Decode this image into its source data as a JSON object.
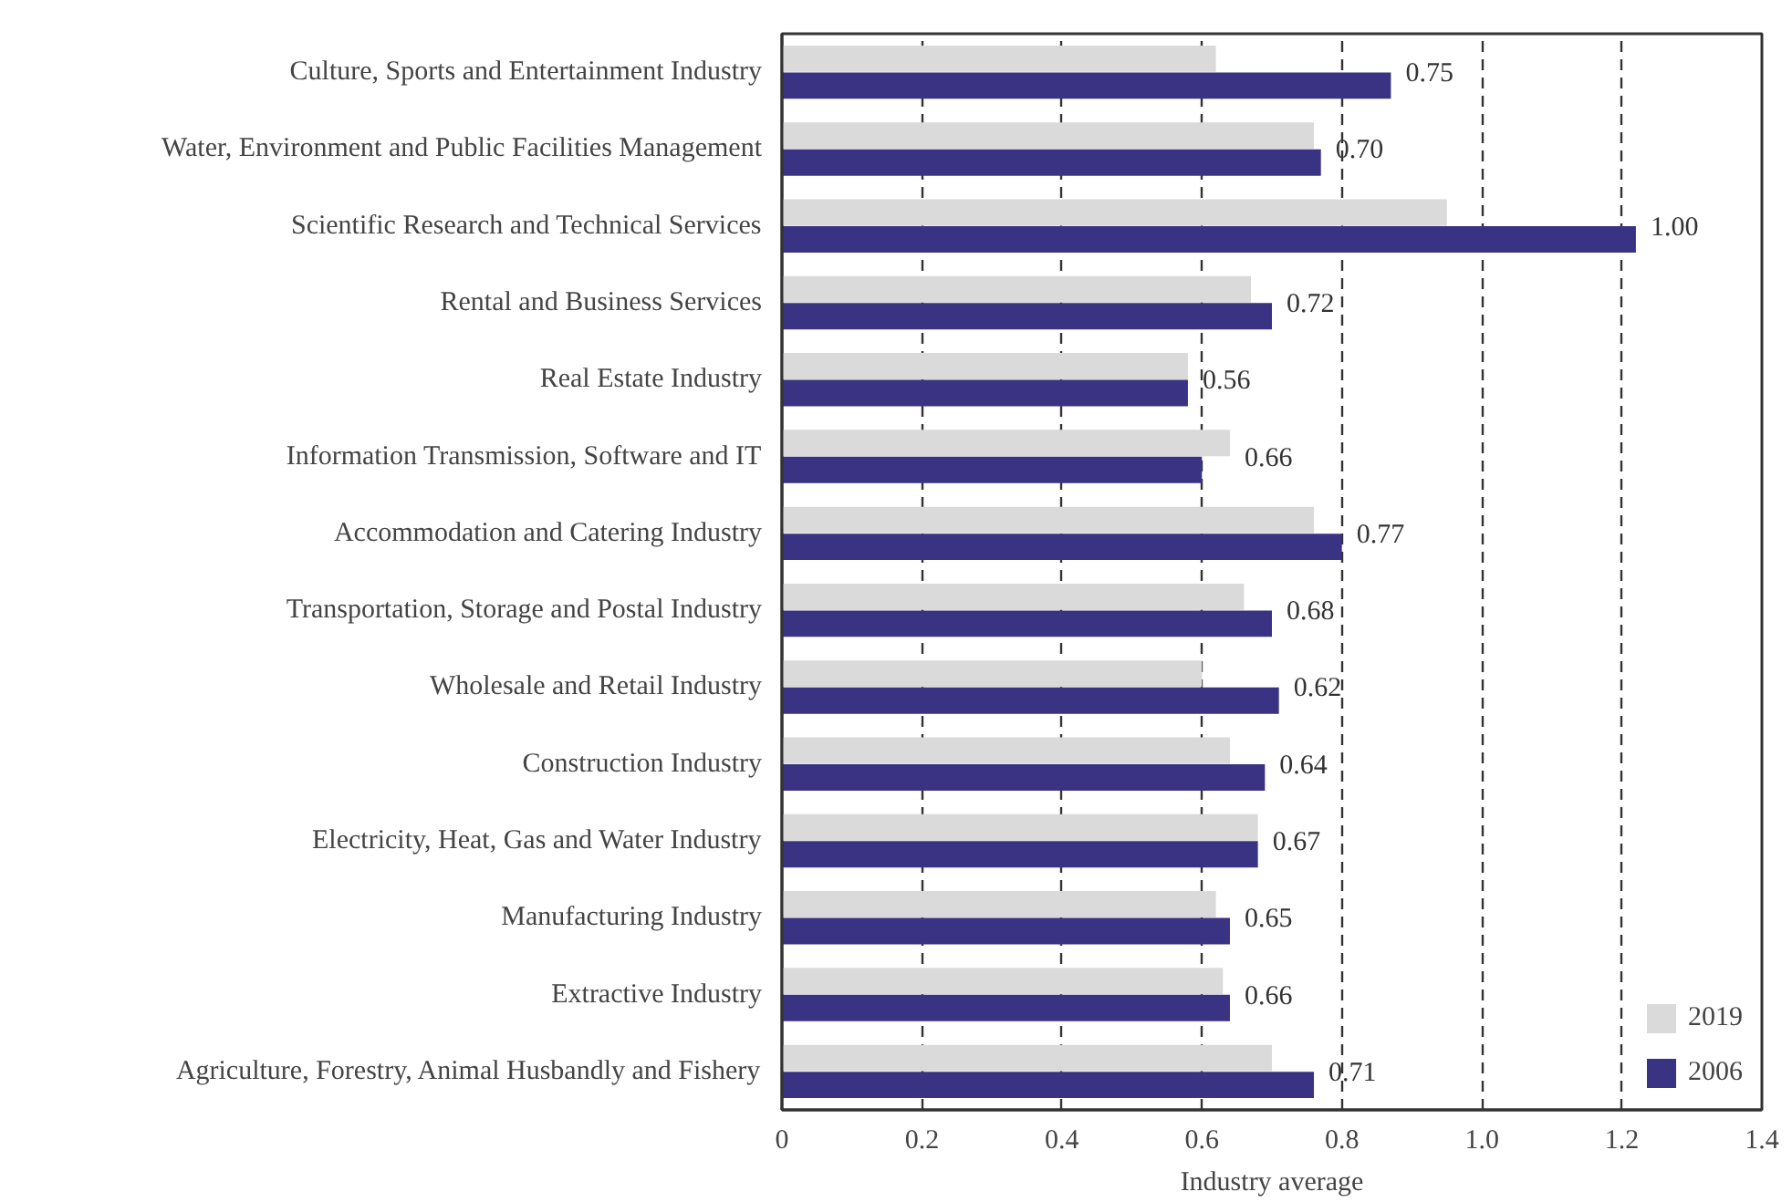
{
  "chart_data": {
    "type": "bar",
    "orientation": "horizontal",
    "xlabel": "Industry average",
    "categories": [
      "Culture, Sports and Entertainment Industry",
      "Water, Environment and Public Facilities Management",
      "Scientific Research and Technical Services",
      "Rental and Business Services",
      "Real Estate Industry",
      "Information Transmission, Software and IT",
      "Accommodation and Catering Industry",
      "Transportation, Storage and Postal Industry",
      "Wholesale and Retail Industry",
      "Construction Industry",
      "Electricity, Heat, Gas and Water Industry",
      "Manufacturing Industry",
      "Extractive Industry",
      "Agriculture, Forestry, Animal Husbandly and Fishery"
    ],
    "series": [
      {
        "name": "2019",
        "color": "#d9dad9",
        "values": [
          0.62,
          0.76,
          0.95,
          0.67,
          0.58,
          0.64,
          0.76,
          0.66,
          0.6,
          0.64,
          0.68,
          0.62,
          0.63,
          0.7
        ]
      },
      {
        "name": "2006",
        "color": "#3a3283",
        "values": [
          0.87,
          0.77,
          1.22,
          0.7,
          0.58,
          0.6,
          0.8,
          0.7,
          0.71,
          0.69,
          0.68,
          0.64,
          0.64,
          0.76
        ]
      }
    ],
    "annotations": [
      {
        "text": "0.75",
        "x": 0.87,
        "y": "Culture, Sports and Entertainment Industry"
      },
      {
        "text": "0.70",
        "x": 0.77,
        "y": "Water, Environment and Public Facilities Management"
      },
      {
        "text": "1.00",
        "x": 1.22,
        "y": "Scientific Research and Technical Services"
      },
      {
        "text": "0.72",
        "x": 0.7,
        "y": "Rental and Business Services"
      },
      {
        "text": "0.56",
        "x": 0.58,
        "y": "Real Estate Industry"
      },
      {
        "text": "0.66",
        "x": 0.64,
        "y": "Information Transmission, Software and IT"
      },
      {
        "text": "0.77",
        "x": 0.8,
        "y": "Accommodation and Catering Industry"
      },
      {
        "text": "0.68",
        "x": 0.7,
        "y": "Transportation, Storage and Postal Industry"
      },
      {
        "text": "0.62",
        "x": 0.71,
        "y": "Wholesale and Retail Industry"
      },
      {
        "text": "0.64",
        "x": 0.69,
        "y": "Construction Industry"
      },
      {
        "text": "0.67",
        "x": 0.68,
        "y": "Electricity, Heat, Gas and Water Industry"
      },
      {
        "text": "0.65",
        "x": 0.64,
        "y": "Manufacturing Industry"
      },
      {
        "text": "0.66",
        "x": 0.64,
        "y": "Extractive Industry"
      },
      {
        "text": "0.71",
        "x": 0.76,
        "y": "Agriculture, Forestry, Animal Husbandly and Fishery"
      }
    ],
    "xlim": [
      0,
      1.4
    ],
    "xticks": [
      0,
      0.2,
      0.4,
      0.6,
      0.8,
      {
        "value": 1.0,
        "label": "1.0"
      },
      1.2,
      1.4
    ],
    "grid": "x",
    "legend": "bottom right"
  }
}
